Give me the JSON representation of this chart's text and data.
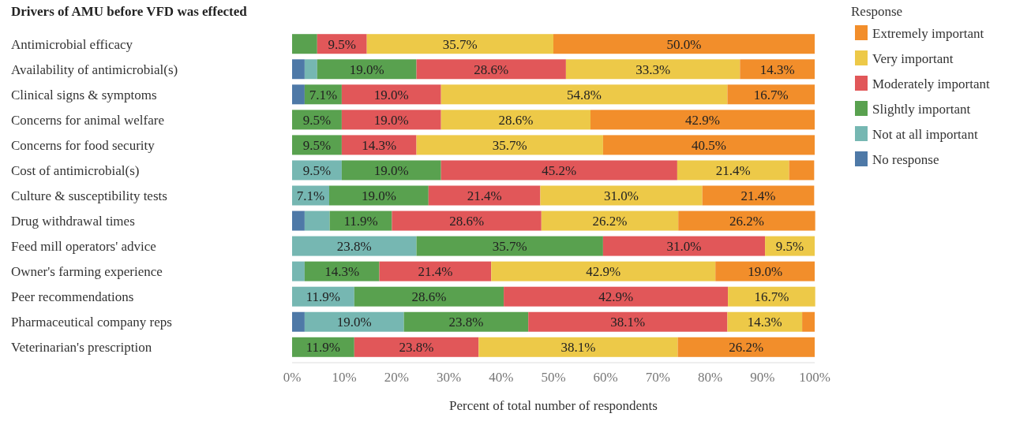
{
  "chart_data": {
    "type": "bar",
    "orientation": "horizontal",
    "stacked": true,
    "title": "Drivers of AMU before VFD was effected",
    "xlabel": "Percent of total number of respondents",
    "legend_title": "Response",
    "legend": "right",
    "grid": false,
    "categories": [
      "Antimicrobial efficacy",
      "Availability of antimicrobial(s)",
      "Clinical signs & symptoms",
      "Concerns for animal welfare",
      "Concerns for food security",
      "Cost of antimicrobial(s)",
      "Culture & susceptibility tests",
      "Drug withdrawal times",
      "Feed mill operators' advice",
      "Owner's farming experience",
      "Peer recommendations",
      "Pharmaceutical company reps",
      "Veterinarian's prescription"
    ],
    "xlim": [
      0,
      100
    ],
    "xticks": [
      {
        "value": 0,
        "label": "0%"
      },
      {
        "value": 10,
        "label": "10%"
      },
      {
        "value": 20,
        "label": "20%"
      },
      {
        "value": 30,
        "label": "30%"
      },
      {
        "value": 40,
        "label": "40%"
      },
      {
        "value": 50,
        "label": "50%"
      },
      {
        "value": 60,
        "label": "60%"
      },
      {
        "value": 70,
        "label": "70%"
      },
      {
        "value": 80,
        "label": "80%"
      },
      {
        "value": 90,
        "label": "90%"
      },
      {
        "value": 100,
        "label": "100%"
      }
    ],
    "series": [
      {
        "name": "No response",
        "color": "#4e79a7",
        "values": [
          null,
          2.4,
          2.4,
          null,
          null,
          null,
          null,
          2.4,
          null,
          null,
          null,
          2.4,
          null
        ],
        "value_labels": [
          null,
          null,
          null,
          null,
          null,
          null,
          null,
          null,
          null,
          null,
          null,
          null,
          null
        ]
      },
      {
        "name": "Not at all important",
        "color": "#76b7b2",
        "values": [
          null,
          2.4,
          null,
          null,
          null,
          9.5,
          7.1,
          4.8,
          23.8,
          2.4,
          11.9,
          19.0,
          null
        ],
        "value_labels": [
          null,
          null,
          null,
          null,
          null,
          "9.5%",
          "7.1%",
          null,
          "23.8%",
          null,
          "11.9%",
          "19.0%",
          null
        ]
      },
      {
        "name": "Slightly important",
        "color": "#59a14f",
        "values": [
          4.8,
          19.0,
          7.1,
          9.5,
          9.5,
          19.0,
          19.0,
          11.9,
          35.7,
          14.3,
          28.6,
          23.8,
          11.9
        ],
        "value_labels": [
          null,
          "19.0%",
          "7.1%",
          "9.5%",
          "9.5%",
          "19.0%",
          "19.0%",
          "11.9%",
          "35.7%",
          "14.3%",
          "28.6%",
          "23.8%",
          "11.9%"
        ]
      },
      {
        "name": "Moderately important",
        "color": "#e15759",
        "values": [
          9.5,
          28.6,
          19.0,
          19.0,
          14.3,
          45.2,
          21.4,
          28.6,
          31.0,
          21.4,
          42.9,
          38.1,
          23.8
        ],
        "value_labels": [
          "9.5%",
          "28.6%",
          "19.0%",
          "19.0%",
          "14.3%",
          "45.2%",
          "21.4%",
          "28.6%",
          "31.0%",
          "21.4%",
          "42.9%",
          "38.1%",
          "23.8%"
        ]
      },
      {
        "name": "Very important",
        "color": "#edc948",
        "values": [
          35.7,
          33.3,
          54.8,
          28.6,
          35.7,
          21.4,
          31.0,
          26.2,
          9.5,
          42.9,
          16.7,
          14.3,
          38.1
        ],
        "value_labels": [
          "35.7%",
          "33.3%",
          "54.8%",
          "28.6%",
          "35.7%",
          "21.4%",
          "31.0%",
          "26.2%",
          "9.5%",
          "42.9%",
          "16.7%",
          "14.3%",
          "38.1%"
        ]
      },
      {
        "name": "Extremely important",
        "color": "#f28e2b",
        "values": [
          50.0,
          14.3,
          16.7,
          42.9,
          40.5,
          4.8,
          21.4,
          26.2,
          null,
          19.0,
          null,
          2.4,
          26.2
        ],
        "value_labels": [
          "50.0%",
          "14.3%",
          "16.7%",
          "42.9%",
          "40.5%",
          null,
          "21.4%",
          "26.2%",
          null,
          "19.0%",
          null,
          null,
          "26.2%"
        ]
      }
    ]
  }
}
